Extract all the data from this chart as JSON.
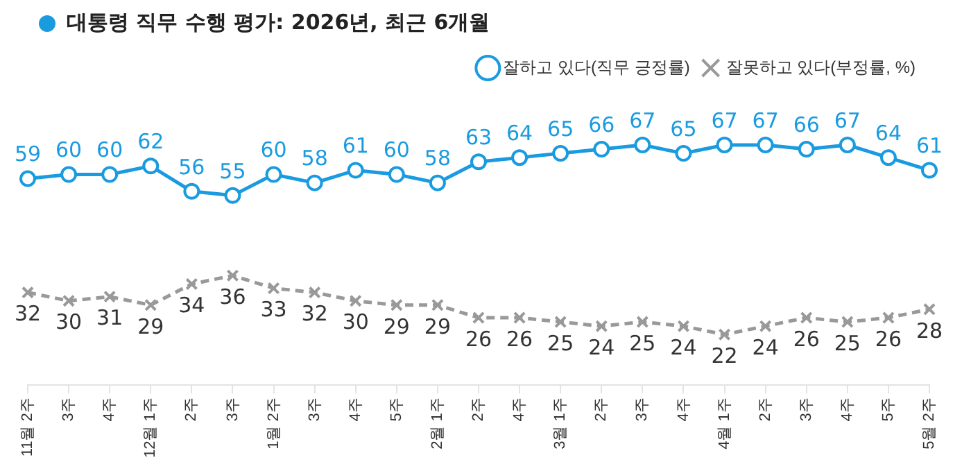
{
  "chart_data": {
    "type": "line",
    "title": "대통령 직무 수행 평가: 2026년, 최근 6개월",
    "categories": [
      "11월 2주",
      "3주",
      "4주",
      "12월 1주",
      "2주",
      "3주",
      "1월 2주",
      "3주",
      "4주",
      "5주",
      "2월 1주",
      "2주",
      "4주",
      "3월 1주",
      "2주",
      "3주",
      "4주",
      "4월 1주",
      "2주",
      "3주",
      "4주",
      "5주",
      "5월 2주"
    ],
    "series": [
      {
        "name": "잘하고 있다(직무 긍정률)",
        "color": "#1a9be0",
        "marker": "circle",
        "line_style": "solid",
        "values": [
          59,
          60,
          60,
          62,
          56,
          55,
          60,
          58,
          61,
          60,
          58,
          63,
          64,
          65,
          66,
          67,
          65,
          67,
          67,
          66,
          67,
          64,
          61
        ]
      },
      {
        "name": "잘못하고 있다(부정률, %)",
        "color": "#999999",
        "marker": "cross",
        "line_style": "dashed",
        "values": [
          32,
          30,
          31,
          29,
          34,
          36,
          33,
          32,
          30,
          29,
          29,
          26,
          26,
          25,
          24,
          25,
          24,
          22,
          24,
          26,
          25,
          26,
          28
        ]
      }
    ],
    "tick_labels": "x",
    "grid": false,
    "legend": "top right",
    "data_labels": true
  }
}
